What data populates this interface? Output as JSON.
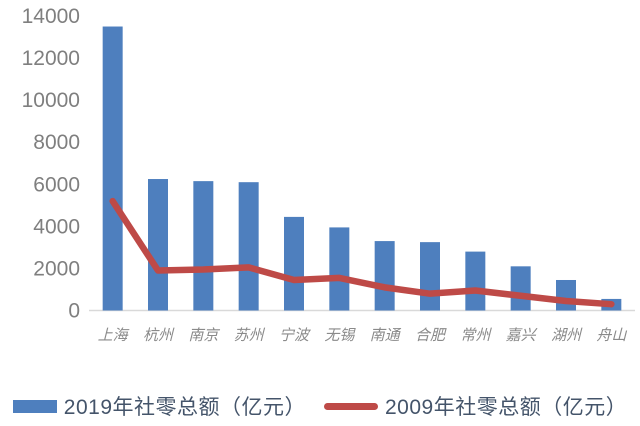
{
  "chart_data": {
    "type": "bar",
    "subtype": "bar-line-combo",
    "title": "",
    "xlabel": "",
    "ylabel": "",
    "categories": [
      "上海",
      "杭州",
      "南京",
      "苏州",
      "宁波",
      "无锡",
      "南通",
      "合肥",
      "常州",
      "嘉兴",
      "湖州",
      "舟山"
    ],
    "series": [
      {
        "name": "2019年社零总额（亿元）",
        "render": "bar",
        "color": "#4e7fbe",
        "values": [
          13500,
          6250,
          6150,
          6100,
          4450,
          3950,
          3300,
          3250,
          2800,
          2100,
          1450,
          550
        ]
      },
      {
        "name": "2009年社零总额（亿元）",
        "render": "line",
        "color": "#be4a47",
        "values": [
          5200,
          1900,
          1950,
          2050,
          1450,
          1550,
          1100,
          800,
          950,
          700,
          450,
          300
        ]
      }
    ],
    "ylim": [
      0,
      14000
    ],
    "yticks": [
      0,
      2000,
      4000,
      6000,
      8000,
      10000,
      12000,
      14000
    ],
    "grid": false,
    "legend_position": "bottom",
    "colors": {
      "axis_text": "#7f7f7f",
      "x_label_text": "#8a8a8a",
      "baseline": "#d9d9d9",
      "legend_text": "#44546a",
      "background": "#ffffff"
    }
  }
}
